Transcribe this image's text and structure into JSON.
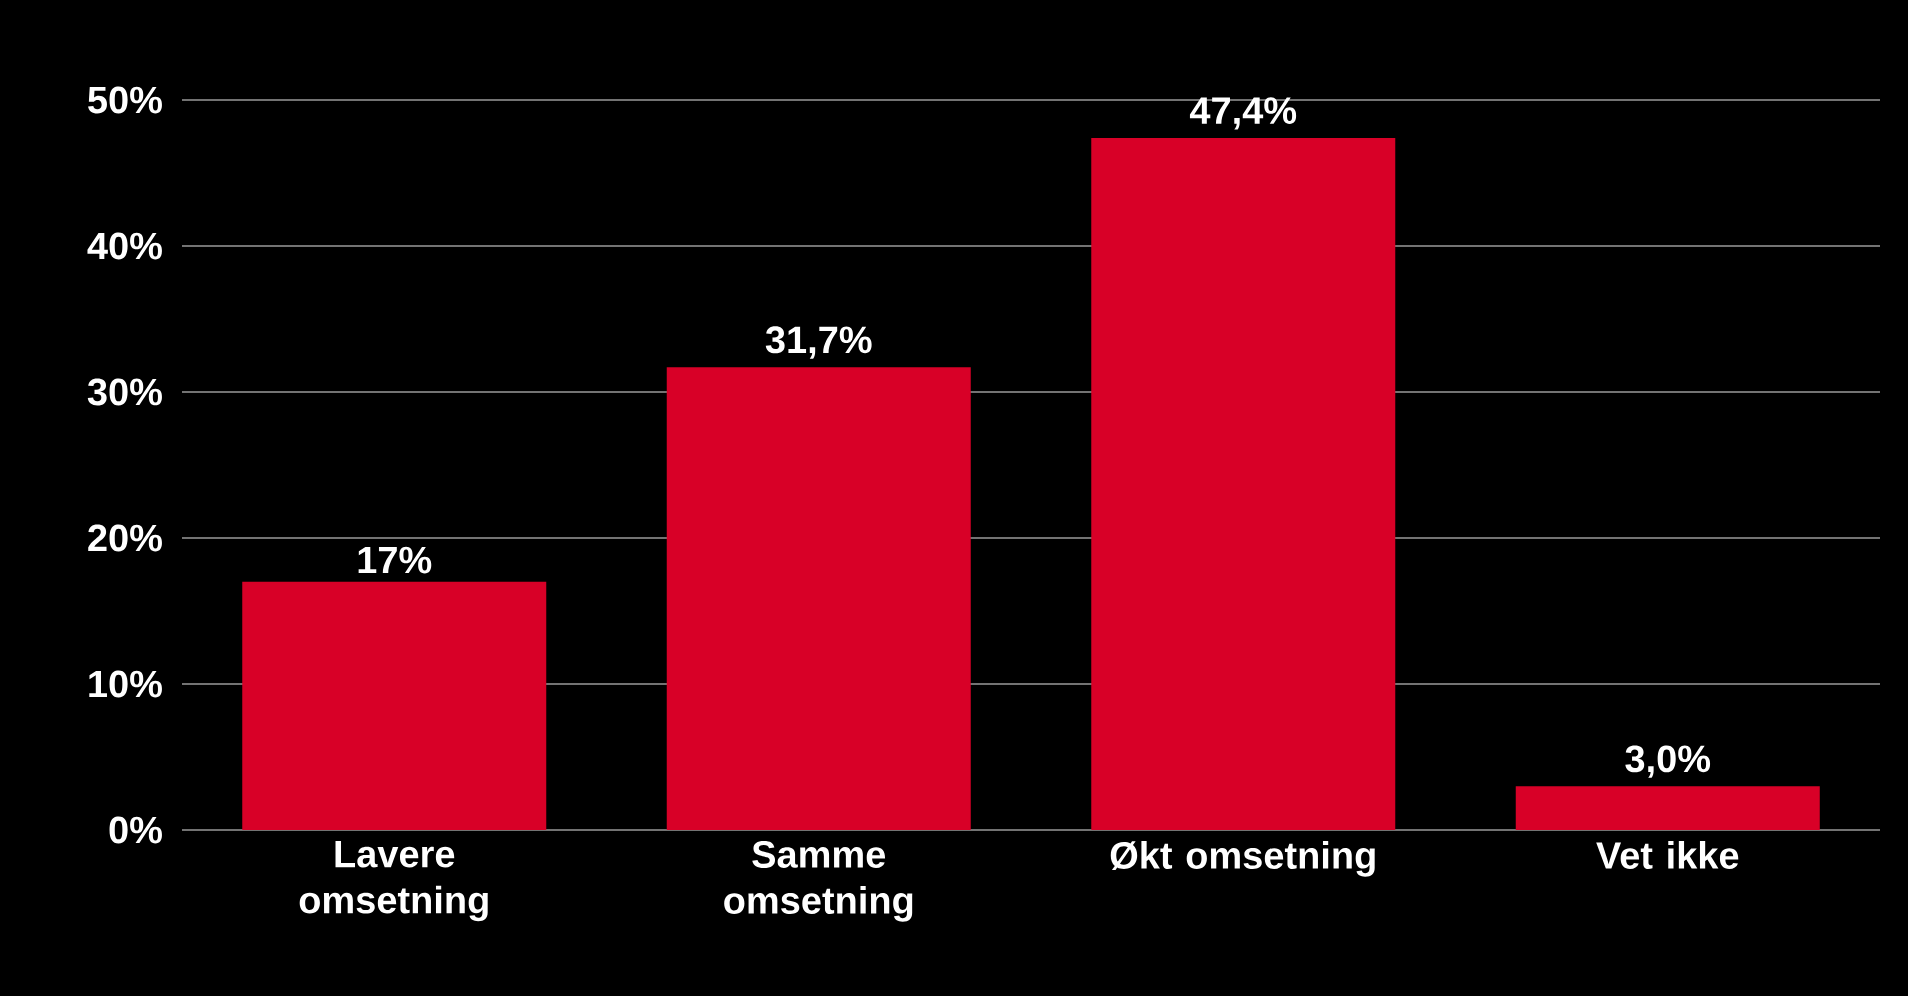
{
  "chart_data": {
    "type": "bar",
    "categories": [
      "Lavere omsetning",
      "Samme omsetning",
      "Økt omsetning",
      "Vet ikke"
    ],
    "values": [
      17,
      31.7,
      47.4,
      3.0
    ],
    "value_labels": [
      "17%",
      "31,7%",
      "47,4%",
      "3,0%"
    ],
    "color": "#d80027",
    "ylim": [
      0,
      50
    ],
    "yticks": [
      {
        "value": 0,
        "label": "0%"
      },
      {
        "value": 10,
        "label": "10%"
      },
      {
        "value": 20,
        "label": "20%"
      },
      {
        "value": 30,
        "label": "30%"
      },
      {
        "value": 40,
        "label": "40%"
      },
      {
        "value": 50,
        "label": "50%"
      }
    ],
    "grid": "y"
  }
}
